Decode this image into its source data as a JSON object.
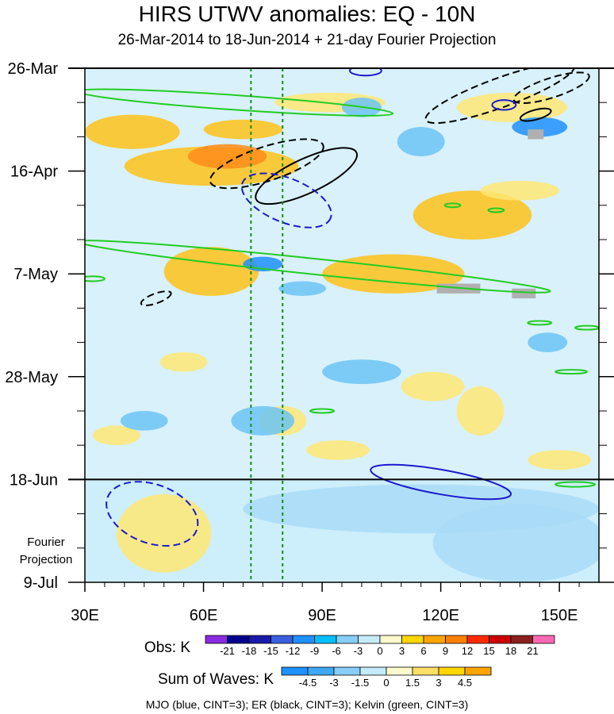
{
  "chart_data": {
    "type": "heatmap",
    "title": "HIRS UTWV anomalies: EQ - 10N",
    "subtitle": "26-Mar-2014 to 18-Jun-2014 + 21-day Fourier Projection",
    "x_ticks": [
      {
        "value": 30,
        "label": "30E"
      },
      {
        "value": 60,
        "label": "60E"
      },
      {
        "value": 90,
        "label": "90E"
      },
      {
        "value": 120,
        "label": "120E"
      },
      {
        "value": 150,
        "label": "150E"
      }
    ],
    "xlim": [
      30,
      160
    ],
    "y_ticks": [
      {
        "day": 0,
        "label": "26-Mar"
      },
      {
        "day": 21,
        "label": "16-Apr"
      },
      {
        "day": 42,
        "label": "7-May"
      },
      {
        "day": 63,
        "label": "28-May"
      },
      {
        "day": 84,
        "label": "18-Jun"
      },
      {
        "day": 105,
        "label": "9-Jul"
      }
    ],
    "ylim_days": [
      0,
      105
    ],
    "projection_start_day": 84,
    "projection_label": [
      "Fourier",
      "Projection"
    ],
    "reference_longitudes": [
      72,
      80
    ],
    "obs_legend": {
      "label": "Obs: K",
      "levels": [
        "-21",
        "-18",
        "-15",
        "-12",
        "-9",
        "-6",
        "-3",
        "0",
        "3",
        "6",
        "9",
        "12",
        "15",
        "18",
        "21"
      ],
      "colors": [
        "#8a2be2",
        "#00008b",
        "#1a1aa8",
        "#3a5fe0",
        "#1e90ff",
        "#00bfff",
        "#87cefa",
        "#c6ecfa",
        "#fffacd",
        "#ffd700",
        "#ffa500",
        "#ff7f00",
        "#ff2a00",
        "#cc0000",
        "#8b2020",
        "#ff69b4"
      ]
    },
    "waves_legend": {
      "label": "Sum of Waves: K",
      "levels": [
        "-4.5",
        "-3",
        "-1.5",
        "0",
        "1.5",
        "3",
        "4.5"
      ],
      "colors": [
        "#1e90ff",
        "#3fa9f5",
        "#87cefa",
        "#c6ecfa",
        "#fffacd",
        "#ffe066",
        "#ffd700",
        "#ffa500"
      ]
    },
    "footer": "MJO (blue, CINT=3); ER (black, CINT=3); Kelvin (green, CINT=3)",
    "anomaly_regions": [
      {
        "lon": 42,
        "day": 13,
        "rlon": 12,
        "rday": 3.5,
        "level": 6
      },
      {
        "lon": 62,
        "day": 20,
        "rlon": 22,
        "rday": 4,
        "level": 6
      },
      {
        "lon": 66,
        "day": 18,
        "rlon": 10,
        "rday": 2.5,
        "level": 9
      },
      {
        "lon": 70,
        "day": 12.5,
        "rlon": 10,
        "rday": 2,
        "level": 6
      },
      {
        "lon": 62,
        "day": 41.5,
        "rlon": 12,
        "rday": 5,
        "level": 6
      },
      {
        "lon": 92,
        "day": 7,
        "rlon": 14,
        "rday": 2,
        "level": 3
      },
      {
        "lon": 108,
        "day": 42,
        "rlon": 18,
        "rday": 4,
        "level": 6
      },
      {
        "lon": 128,
        "day": 30,
        "rlon": 15,
        "rday": 5,
        "level": 6
      },
      {
        "lon": 140,
        "day": 25,
        "rlon": 10,
        "rday": 2,
        "level": 3
      },
      {
        "lon": 138,
        "day": 8,
        "rlon": 14,
        "rday": 3,
        "level": 3
      },
      {
        "lon": 118,
        "day": 65,
        "rlon": 8,
        "rday": 3,
        "level": 3
      },
      {
        "lon": 130,
        "day": 70,
        "rlon": 6,
        "rday": 5,
        "level": 3
      },
      {
        "lon": 80,
        "day": 72,
        "rlon": 6,
        "rday": 3,
        "level": 3
      },
      {
        "lon": 150,
        "day": 80,
        "rlon": 8,
        "rday": 2,
        "level": 3
      },
      {
        "lon": 94,
        "day": 78,
        "rlon": 8,
        "rday": 2,
        "level": 3
      },
      {
        "lon": 55,
        "day": 60,
        "rlon": 6,
        "rday": 2,
        "level": 3
      },
      {
        "lon": 38,
        "day": 75,
        "rlon": 6,
        "rday": 2,
        "level": 3
      },
      {
        "lon": 50,
        "day": 95,
        "rlon": 12,
        "rday": 8,
        "level": 3
      },
      {
        "lon": 115,
        "day": 90,
        "rlon": 45,
        "rday": 5,
        "level": -1.5
      },
      {
        "lon": 140,
        "day": 97,
        "rlon": 22,
        "rday": 8,
        "level": -1.5
      },
      {
        "lon": 75,
        "day": 72,
        "rlon": 8,
        "rday": 3,
        "level": -3
      },
      {
        "lon": 45,
        "day": 72,
        "rlon": 6,
        "rday": 2,
        "level": -3
      },
      {
        "lon": 75,
        "day": 40,
        "rlon": 5,
        "rday": 1.5,
        "level": -6
      },
      {
        "lon": 145,
        "day": 12,
        "rlon": 7,
        "rday": 2,
        "level": -6
      },
      {
        "lon": 100,
        "day": 8,
        "rlon": 5,
        "rday": 2,
        "level": -3
      },
      {
        "lon": 100,
        "day": 62,
        "rlon": 10,
        "rday": 2.5,
        "level": -3
      },
      {
        "lon": 147,
        "day": 56,
        "rlon": 5,
        "rday": 2,
        "level": -3
      },
      {
        "lon": 85,
        "day": 45,
        "rlon": 6,
        "rday": 1.5,
        "level": -3
      },
      {
        "lon": 115,
        "day": 15,
        "rlon": 6,
        "rday": 3,
        "level": -3
      }
    ],
    "missing_regions": [
      {
        "lon0": 142,
        "lon1": 146,
        "day0": 12.5,
        "day1": 14.5
      },
      {
        "lon0": 119,
        "lon1": 130,
        "day0": 44,
        "day1": 46
      },
      {
        "lon0": 138,
        "lon1": 144,
        "day0": 45,
        "day1": 47
      }
    ],
    "mjo_contours": [
      {
        "lon": 81,
        "day": 27,
        "rlon": 12,
        "rday": 4.5,
        "angle": 22,
        "dashed": true
      },
      {
        "lon": 47,
        "day": 91,
        "rlon": 12,
        "rday": 6,
        "angle": 20,
        "dashed": true
      },
      {
        "lon": 120,
        "day": 84.5,
        "rlon": 18,
        "rday": 2.5,
        "angle": 10,
        "dashed": false
      },
      {
        "lon": 101,
        "day": 0.5,
        "rlon": 4,
        "rday": 1,
        "angle": 0,
        "dashed": false
      },
      {
        "lon": 136,
        "day": 7.5,
        "rlon": 3,
        "rday": 1,
        "angle": 0,
        "dashed": false
      }
    ],
    "er_contours": [
      {
        "lon": 76,
        "day": 19.5,
        "rlon": 15,
        "rday": 3.5,
        "angle": -18,
        "dashed": true
      },
      {
        "lon": 86,
        "day": 22,
        "rlon": 14,
        "rday": 3.5,
        "angle": -25,
        "dashed": false
      },
      {
        "lon": 135,
        "day": 5,
        "rlon": 20,
        "rday": 3,
        "angle": -20,
        "dashed": true
      },
      {
        "lon": 148,
        "day": 4,
        "rlon": 10,
        "rday": 2,
        "angle": -18,
        "dashed": true
      },
      {
        "lon": 144,
        "day": 9.5,
        "rlon": 4,
        "rday": 1,
        "angle": -15,
        "dashed": false
      },
      {
        "lon": 48,
        "day": 47,
        "rlon": 4,
        "rday": 1,
        "angle": -20,
        "dashed": true
      }
    ],
    "kelvin_contours": [
      {
        "lon": 68,
        "day": 7,
        "rlon": 40,
        "rday": 1.5,
        "angle": 4,
        "dashed": false
      },
      {
        "lon": 88,
        "day": 40.5,
        "rlon": 60,
        "rday": 1.6,
        "angle": 6,
        "dashed": false
      },
      {
        "lon": 32,
        "day": 43,
        "rlon": 3,
        "rday": 0.5,
        "angle": 0,
        "dashed": false
      },
      {
        "lon": 123,
        "day": 28,
        "rlon": 2,
        "rday": 0.4,
        "angle": 0,
        "dashed": false
      },
      {
        "lon": 134,
        "day": 29,
        "rlon": 2,
        "rday": 0.4,
        "angle": 0,
        "dashed": false
      },
      {
        "lon": 145,
        "day": 52,
        "rlon": 3,
        "rday": 0.4,
        "angle": 0,
        "dashed": false
      },
      {
        "lon": 157,
        "day": 53,
        "rlon": 3,
        "rday": 0.4,
        "angle": 0,
        "dashed": false
      },
      {
        "lon": 153,
        "day": 62,
        "rlon": 4,
        "rday": 0.4,
        "angle": 0,
        "dashed": false
      },
      {
        "lon": 90,
        "day": 70,
        "rlon": 3,
        "rday": 0.4,
        "angle": 0,
        "dashed": false
      },
      {
        "lon": 154,
        "day": 85,
        "rlon": 5,
        "rday": 0.5,
        "angle": 0,
        "dashed": false
      }
    ]
  }
}
